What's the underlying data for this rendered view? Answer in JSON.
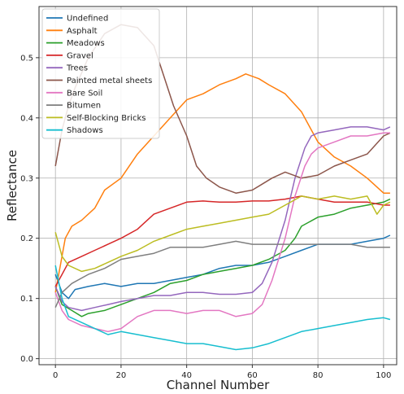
{
  "chart_data": {
    "type": "line",
    "xlabel": "Channel Number",
    "ylabel": "Reflectance",
    "xlim": [
      -5,
      104
    ],
    "ylim": [
      -0.01,
      0.585
    ],
    "xticks": [
      0,
      20,
      40,
      60,
      80,
      100
    ],
    "yticks": [
      0.0,
      0.1,
      0.2,
      0.3,
      0.4,
      0.5
    ],
    "grid": true,
    "legend_position": "top-left",
    "series": [
      {
        "name": "Undefined",
        "color": "#1f77b4",
        "points": [
          [
            0,
            0.14
          ],
          [
            2,
            0.11
          ],
          [
            4,
            0.1
          ],
          [
            6,
            0.115
          ],
          [
            10,
            0.12
          ],
          [
            15,
            0.125
          ],
          [
            20,
            0.12
          ],
          [
            25,
            0.125
          ],
          [
            30,
            0.125
          ],
          [
            35,
            0.13
          ],
          [
            40,
            0.135
          ],
          [
            45,
            0.14
          ],
          [
            50,
            0.15
          ],
          [
            55,
            0.155
          ],
          [
            60,
            0.155
          ],
          [
            65,
            0.16
          ],
          [
            70,
            0.17
          ],
          [
            75,
            0.18
          ],
          [
            80,
            0.19
          ],
          [
            85,
            0.19
          ],
          [
            90,
            0.19
          ],
          [
            95,
            0.195
          ],
          [
            100,
            0.2
          ],
          [
            102,
            0.205
          ]
        ]
      },
      {
        "name": "Asphalt",
        "color": "#ff7f0e",
        "points": [
          [
            0,
            0.11
          ],
          [
            3,
            0.2
          ],
          [
            5,
            0.22
          ],
          [
            8,
            0.23
          ],
          [
            12,
            0.25
          ],
          [
            15,
            0.28
          ],
          [
            20,
            0.3
          ],
          [
            25,
            0.34
          ],
          [
            30,
            0.37
          ],
          [
            35,
            0.4
          ],
          [
            40,
            0.43
          ],
          [
            45,
            0.44
          ],
          [
            50,
            0.455
          ],
          [
            55,
            0.465
          ],
          [
            58,
            0.473
          ],
          [
            62,
            0.465
          ],
          [
            65,
            0.455
          ],
          [
            70,
            0.44
          ],
          [
            75,
            0.41
          ],
          [
            78,
            0.38
          ],
          [
            80,
            0.36
          ],
          [
            85,
            0.335
          ],
          [
            90,
            0.32
          ],
          [
            95,
            0.3
          ],
          [
            100,
            0.275
          ],
          [
            102,
            0.275
          ]
        ]
      },
      {
        "name": "Meadows",
        "color": "#2ca02c",
        "points": [
          [
            0,
            0.12
          ],
          [
            2,
            0.09
          ],
          [
            5,
            0.08
          ],
          [
            8,
            0.07
          ],
          [
            10,
            0.075
          ],
          [
            15,
            0.08
          ],
          [
            20,
            0.09
          ],
          [
            25,
            0.1
          ],
          [
            30,
            0.11
          ],
          [
            35,
            0.125
          ],
          [
            40,
            0.13
          ],
          [
            45,
            0.14
          ],
          [
            50,
            0.145
          ],
          [
            55,
            0.15
          ],
          [
            60,
            0.155
          ],
          [
            65,
            0.165
          ],
          [
            70,
            0.18
          ],
          [
            73,
            0.2
          ],
          [
            75,
            0.22
          ],
          [
            80,
            0.235
          ],
          [
            85,
            0.24
          ],
          [
            90,
            0.25
          ],
          [
            95,
            0.255
          ],
          [
            100,
            0.26
          ],
          [
            102,
            0.265
          ]
        ]
      },
      {
        "name": "Gravel",
        "color": "#d62728",
        "points": [
          [
            0,
            0.12
          ],
          [
            2,
            0.14
          ],
          [
            4,
            0.16
          ],
          [
            8,
            0.17
          ],
          [
            12,
            0.18
          ],
          [
            16,
            0.19
          ],
          [
            20,
            0.2
          ],
          [
            25,
            0.215
          ],
          [
            30,
            0.24
          ],
          [
            35,
            0.25
          ],
          [
            40,
            0.26
          ],
          [
            45,
            0.262
          ],
          [
            50,
            0.26
          ],
          [
            55,
            0.26
          ],
          [
            60,
            0.262
          ],
          [
            65,
            0.262
          ],
          [
            70,
            0.265
          ],
          [
            75,
            0.27
          ],
          [
            80,
            0.265
          ],
          [
            85,
            0.26
          ],
          [
            90,
            0.26
          ],
          [
            95,
            0.26
          ],
          [
            100,
            0.255
          ],
          [
            102,
            0.255
          ]
        ]
      },
      {
        "name": "Trees",
        "color": "#9467bd",
        "points": [
          [
            0,
            0.12
          ],
          [
            2,
            0.095
          ],
          [
            4,
            0.085
          ],
          [
            8,
            0.08
          ],
          [
            12,
            0.085
          ],
          [
            16,
            0.09
          ],
          [
            20,
            0.095
          ],
          [
            25,
            0.1
          ],
          [
            30,
            0.105
          ],
          [
            35,
            0.105
          ],
          [
            40,
            0.11
          ],
          [
            45,
            0.11
          ],
          [
            50,
            0.107
          ],
          [
            55,
            0.107
          ],
          [
            60,
            0.11
          ],
          [
            63,
            0.125
          ],
          [
            66,
            0.16
          ],
          [
            70,
            0.23
          ],
          [
            73,
            0.3
          ],
          [
            76,
            0.35
          ],
          [
            78,
            0.37
          ],
          [
            80,
            0.375
          ],
          [
            85,
            0.38
          ],
          [
            90,
            0.385
          ],
          [
            95,
            0.385
          ],
          [
            100,
            0.38
          ],
          [
            102,
            0.385
          ]
        ]
      },
      {
        "name": "Painted metal sheets",
        "color": "#8c564b",
        "points": [
          [
            0,
            0.32
          ],
          [
            2,
            0.38
          ],
          [
            4,
            0.42
          ],
          [
            6,
            0.45
          ],
          [
            10,
            0.5
          ],
          [
            15,
            0.54
          ],
          [
            20,
            0.555
          ],
          [
            25,
            0.55
          ],
          [
            30,
            0.52
          ],
          [
            33,
            0.47
          ],
          [
            36,
            0.42
          ],
          [
            40,
            0.37
          ],
          [
            43,
            0.32
          ],
          [
            46,
            0.3
          ],
          [
            50,
            0.285
          ],
          [
            55,
            0.275
          ],
          [
            60,
            0.28
          ],
          [
            63,
            0.29
          ],
          [
            66,
            0.3
          ],
          [
            70,
            0.31
          ],
          [
            75,
            0.3
          ],
          [
            80,
            0.305
          ],
          [
            85,
            0.32
          ],
          [
            90,
            0.33
          ],
          [
            95,
            0.34
          ],
          [
            100,
            0.37
          ],
          [
            102,
            0.375
          ]
        ]
      },
      {
        "name": "Bare Soil",
        "color": "#e377c2",
        "points": [
          [
            0,
            0.11
          ],
          [
            2,
            0.08
          ],
          [
            4,
            0.065
          ],
          [
            8,
            0.055
          ],
          [
            12,
            0.05
          ],
          [
            16,
            0.045
          ],
          [
            20,
            0.05
          ],
          [
            25,
            0.07
          ],
          [
            30,
            0.08
          ],
          [
            35,
            0.08
          ],
          [
            40,
            0.075
          ],
          [
            45,
            0.08
          ],
          [
            50,
            0.08
          ],
          [
            55,
            0.07
          ],
          [
            60,
            0.075
          ],
          [
            63,
            0.09
          ],
          [
            66,
            0.13
          ],
          [
            70,
            0.2
          ],
          [
            73,
            0.27
          ],
          [
            76,
            0.32
          ],
          [
            78,
            0.34
          ],
          [
            80,
            0.35
          ],
          [
            85,
            0.36
          ],
          [
            90,
            0.37
          ],
          [
            95,
            0.37
          ],
          [
            100,
            0.375
          ],
          [
            102,
            0.375
          ]
        ]
      },
      {
        "name": "Bitumen",
        "color": "#7f7f7f",
        "points": [
          [
            0,
            0.085
          ],
          [
            2,
            0.11
          ],
          [
            5,
            0.125
          ],
          [
            10,
            0.14
          ],
          [
            15,
            0.15
          ],
          [
            20,
            0.165
          ],
          [
            25,
            0.17
          ],
          [
            30,
            0.175
          ],
          [
            35,
            0.185
          ],
          [
            40,
            0.185
          ],
          [
            45,
            0.185
          ],
          [
            50,
            0.19
          ],
          [
            55,
            0.195
          ],
          [
            60,
            0.19
          ],
          [
            65,
            0.19
          ],
          [
            70,
            0.19
          ],
          [
            75,
            0.19
          ],
          [
            80,
            0.19
          ],
          [
            85,
            0.19
          ],
          [
            90,
            0.19
          ],
          [
            95,
            0.185
          ],
          [
            100,
            0.185
          ],
          [
            102,
            0.185
          ]
        ]
      },
      {
        "name": "Self-Blocking Bricks",
        "color": "#bcbd22",
        "points": [
          [
            0,
            0.21
          ],
          [
            2,
            0.17
          ],
          [
            4,
            0.155
          ],
          [
            8,
            0.145
          ],
          [
            12,
            0.15
          ],
          [
            16,
            0.16
          ],
          [
            20,
            0.17
          ],
          [
            25,
            0.18
          ],
          [
            30,
            0.195
          ],
          [
            35,
            0.205
          ],
          [
            40,
            0.215
          ],
          [
            45,
            0.22
          ],
          [
            50,
            0.225
          ],
          [
            55,
            0.23
          ],
          [
            60,
            0.235
          ],
          [
            65,
            0.24
          ],
          [
            70,
            0.255
          ],
          [
            75,
            0.27
          ],
          [
            80,
            0.265
          ],
          [
            85,
            0.27
          ],
          [
            90,
            0.265
          ],
          [
            95,
            0.27
          ],
          [
            98,
            0.24
          ],
          [
            100,
            0.255
          ],
          [
            102,
            0.26
          ]
        ]
      },
      {
        "name": "Shadows",
        "color": "#17becf",
        "points": [
          [
            0,
            0.155
          ],
          [
            2,
            0.1
          ],
          [
            4,
            0.07
          ],
          [
            8,
            0.06
          ],
          [
            12,
            0.05
          ],
          [
            16,
            0.04
          ],
          [
            20,
            0.045
          ],
          [
            25,
            0.04
          ],
          [
            30,
            0.035
          ],
          [
            35,
            0.03
          ],
          [
            40,
            0.025
          ],
          [
            45,
            0.025
          ],
          [
            50,
            0.02
          ],
          [
            55,
            0.015
          ],
          [
            60,
            0.018
          ],
          [
            65,
            0.025
          ],
          [
            70,
            0.035
          ],
          [
            75,
            0.045
          ],
          [
            80,
            0.05
          ],
          [
            85,
            0.055
          ],
          [
            90,
            0.06
          ],
          [
            95,
            0.065
          ],
          [
            100,
            0.068
          ],
          [
            102,
            0.065
          ]
        ]
      }
    ]
  }
}
